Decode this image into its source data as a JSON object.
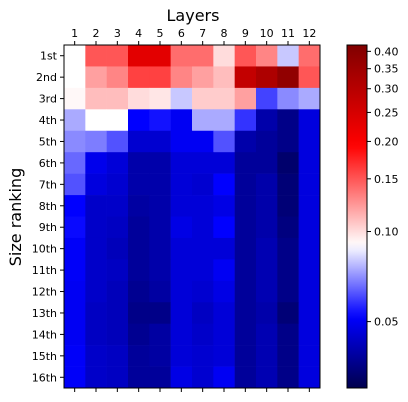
{
  "chart_data": {
    "type": "heatmap",
    "title": "",
    "xlabel": "Layers",
    "ylabel": "Size ranking",
    "x_ticks": [
      "1",
      "2",
      "3",
      "4",
      "5",
      "6",
      "7",
      "8",
      "9",
      "10",
      "11",
      "12"
    ],
    "y_ticks": [
      "1st",
      "2nd",
      "3rd",
      "4th",
      "5th",
      "6th",
      "7th",
      "8th",
      "9th",
      "10th",
      "11th",
      "12th",
      "13th",
      "14th",
      "15th",
      "16th"
    ],
    "colorbar": {
      "scale": "log",
      "range": [
        0.03,
        0.42
      ],
      "ticks": [
        "0.05",
        "0.10",
        "0.15",
        "0.20",
        "0.25",
        "0.30",
        "0.35",
        "0.40"
      ],
      "colormap": "seismic",
      "center": 0.09
    },
    "values": [
      [
        0.09,
        0.15,
        0.15,
        0.23,
        0.23,
        0.14,
        0.14,
        0.1,
        0.15,
        0.13,
        0.08,
        0.14
      ],
      [
        0.09,
        0.12,
        0.13,
        0.16,
        0.16,
        0.13,
        0.12,
        0.11,
        0.28,
        0.32,
        0.38,
        0.15
      ],
      [
        0.092,
        0.11,
        0.11,
        0.1,
        0.097,
        0.08,
        0.105,
        0.105,
        0.12,
        0.06,
        0.07,
        0.075
      ],
      [
        0.075,
        0.09,
        0.09,
        0.052,
        0.054,
        0.05,
        0.075,
        0.075,
        0.058,
        0.04,
        0.036,
        0.047
      ],
      [
        0.07,
        0.068,
        0.062,
        0.045,
        0.045,
        0.05,
        0.05,
        0.062,
        0.04,
        0.038,
        0.036,
        0.047
      ],
      [
        0.065,
        0.049,
        0.046,
        0.04,
        0.04,
        0.046,
        0.046,
        0.046,
        0.038,
        0.038,
        0.033,
        0.047
      ],
      [
        0.062,
        0.047,
        0.045,
        0.04,
        0.04,
        0.046,
        0.045,
        0.052,
        0.038,
        0.04,
        0.034,
        0.047
      ],
      [
        0.052,
        0.044,
        0.044,
        0.039,
        0.04,
        0.046,
        0.046,
        0.048,
        0.038,
        0.04,
        0.034,
        0.047
      ],
      [
        0.053,
        0.044,
        0.043,
        0.038,
        0.04,
        0.048,
        0.046,
        0.052,
        0.038,
        0.04,
        0.035,
        0.047
      ],
      [
        0.051,
        0.044,
        0.042,
        0.038,
        0.04,
        0.046,
        0.046,
        0.046,
        0.038,
        0.041,
        0.036,
        0.047
      ],
      [
        0.051,
        0.044,
        0.043,
        0.038,
        0.04,
        0.046,
        0.046,
        0.05,
        0.038,
        0.041,
        0.036,
        0.047
      ],
      [
        0.05,
        0.044,
        0.042,
        0.037,
        0.039,
        0.046,
        0.045,
        0.048,
        0.038,
        0.041,
        0.036,
        0.047
      ],
      [
        0.05,
        0.043,
        0.042,
        0.036,
        0.036,
        0.046,
        0.043,
        0.046,
        0.038,
        0.04,
        0.034,
        0.047
      ],
      [
        0.05,
        0.043,
        0.042,
        0.037,
        0.039,
        0.046,
        0.044,
        0.046,
        0.038,
        0.041,
        0.036,
        0.047
      ],
      [
        0.051,
        0.044,
        0.043,
        0.038,
        0.039,
        0.046,
        0.045,
        0.046,
        0.038,
        0.041,
        0.036,
        0.047
      ],
      [
        0.051,
        0.044,
        0.043,
        0.038,
        0.038,
        0.048,
        0.045,
        0.05,
        0.038,
        0.041,
        0.036,
        0.047
      ]
    ]
  }
}
